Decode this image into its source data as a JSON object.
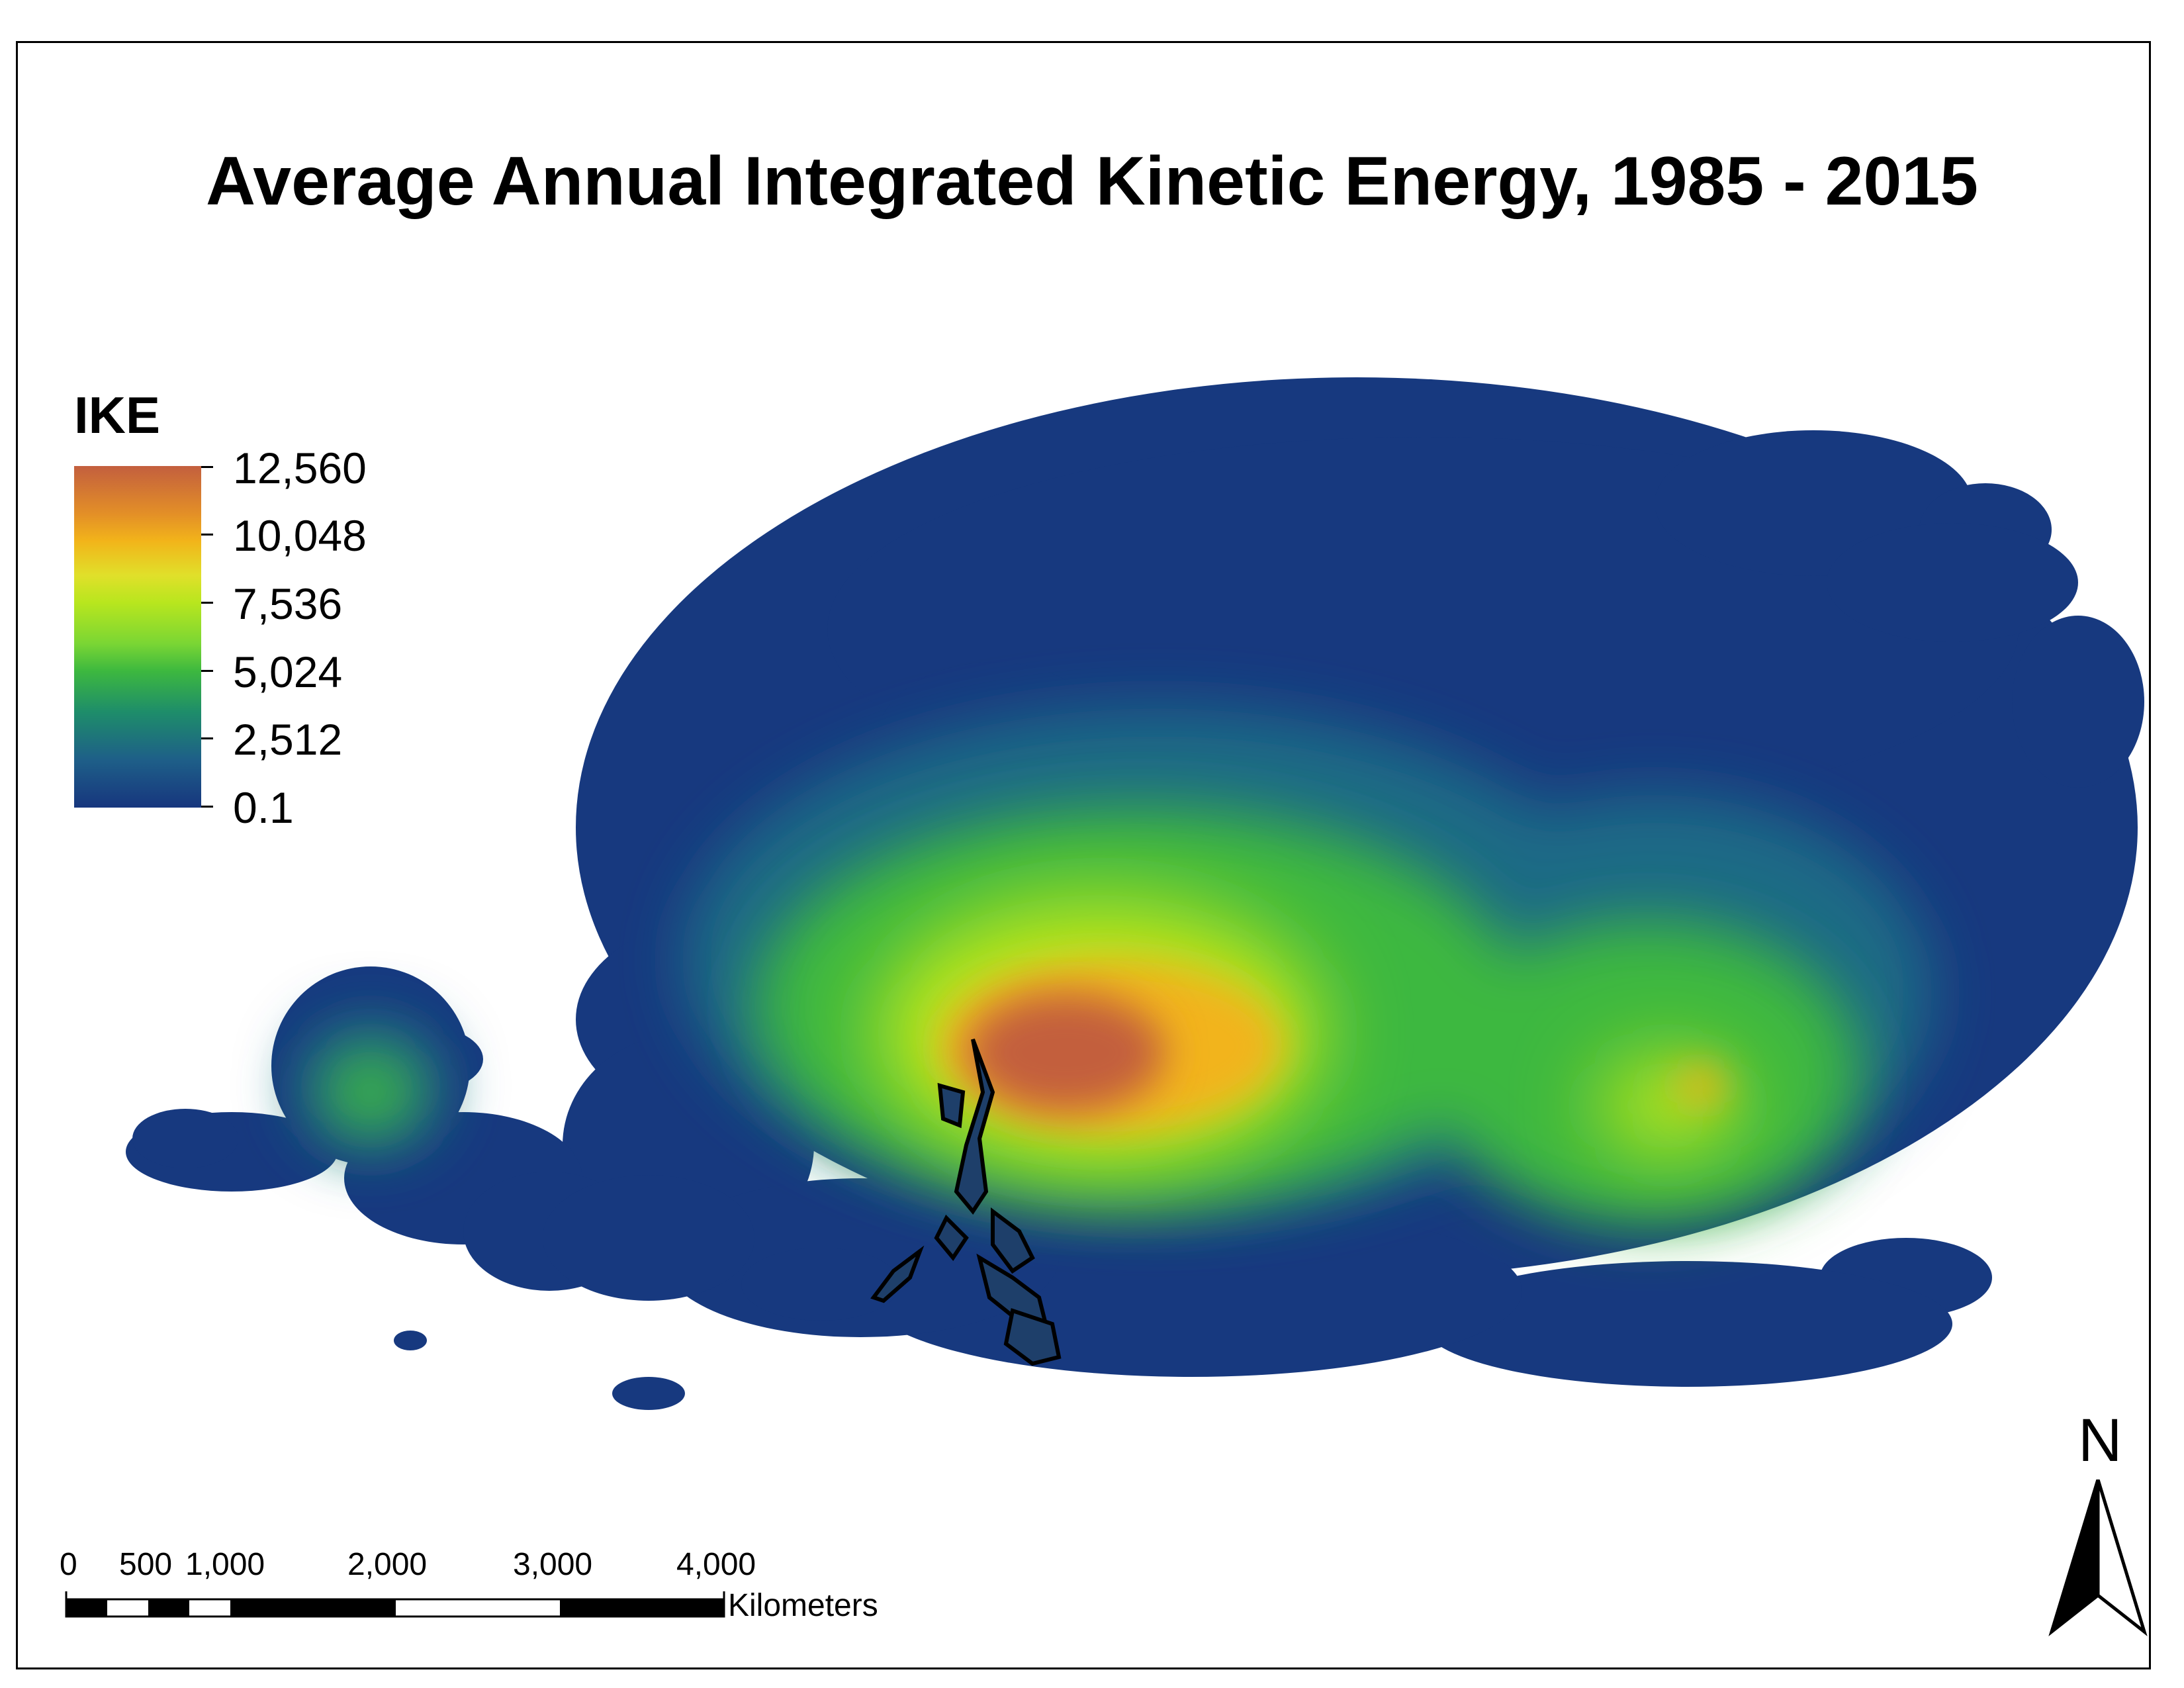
{
  "title": "Average Annual Integrated Kinetic Energy, 1985 - 2015",
  "legend": {
    "title": "IKE",
    "labels": [
      "12,560",
      "10,048",
      "7,536",
      "5,024",
      "2,512",
      "0.1"
    ],
    "ramp_colors": [
      "#c35f3e",
      "#f2b41a",
      "#b8e61e",
      "#3db83f",
      "#1e6b86",
      "#17367e"
    ]
  },
  "scale_bar": {
    "labels": [
      "0",
      "500",
      "1,000",
      "2,000",
      "3,000",
      "4,000"
    ],
    "unit": "Kilometers"
  },
  "north_arrow": {
    "label": "N"
  },
  "colors": {
    "low": "#17367e",
    "mid_low": "#1e6b86",
    "mid": "#3db83f",
    "mid_high": "#b8e61e",
    "high": "#f2b41a",
    "max": "#c35f3e",
    "land": "#000000"
  }
}
